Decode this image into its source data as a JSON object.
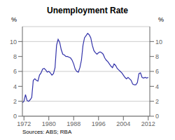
{
  "chart_data": {
    "type": "line",
    "title": "Unemployment Rate",
    "ylabel": "%",
    "y2label": "%",
    "annotations": [
      "Sources: ABS; RBA"
    ],
    "color": "#3333aa",
    "xlim": [
      1971.5,
      2012.5
    ],
    "xticks": [
      1972,
      1980,
      1988,
      1996,
      2004,
      2012
    ],
    "ylim": [
      0,
      12
    ],
    "yticks": [
      0,
      2,
      4,
      6,
      8,
      10
    ],
    "y2lim": [
      0,
      12
    ],
    "y2ticks": [
      0,
      2,
      4,
      6,
      8,
      10
    ],
    "grid": "y",
    "x": [
      1971.5,
      1972.0,
      1972.5,
      1973.0,
      1973.5,
      1974.0,
      1974.5,
      1975.0,
      1975.5,
      1976.0,
      1976.5,
      1977.0,
      1977.5,
      1978.0,
      1978.5,
      1979.0,
      1979.5,
      1980.0,
      1980.5,
      1981.0,
      1981.5,
      1982.0,
      1982.5,
      1983.0,
      1983.5,
      1984.0,
      1984.5,
      1985.0,
      1985.5,
      1986.0,
      1986.5,
      1987.0,
      1987.5,
      1988.0,
      1988.5,
      1989.0,
      1989.5,
      1990.0,
      1990.5,
      1991.0,
      1991.5,
      1992.0,
      1992.5,
      1993.0,
      1993.5,
      1994.0,
      1994.5,
      1995.0,
      1995.5,
      1996.0,
      1996.5,
      1997.0,
      1997.5,
      1998.0,
      1998.5,
      1999.0,
      1999.5,
      2000.0,
      2000.5,
      2001.0,
      2001.5,
      2002.0,
      2002.5,
      2003.0,
      2003.5,
      2004.0,
      2004.5,
      2005.0,
      2005.5,
      2006.0,
      2006.5,
      2007.0,
      2007.5,
      2008.0,
      2008.5,
      2009.0,
      2009.5,
      2010.0,
      2010.5,
      2011.0,
      2011.5,
      2012.0
    ],
    "values": [
      1.8,
      2.0,
      2.9,
      2.1,
      2.0,
      2.2,
      2.5,
      4.8,
      5.0,
      4.8,
      4.7,
      5.5,
      5.8,
      6.3,
      6.4,
      6.2,
      5.9,
      6.0,
      5.8,
      5.5,
      5.7,
      6.5,
      9.5,
      10.3,
      9.9,
      8.9,
      8.3,
      8.2,
      8.0,
      8.0,
      7.9,
      7.8,
      7.5,
      7.0,
      6.3,
      6.0,
      5.9,
      6.5,
      7.5,
      9.5,
      10.5,
      10.8,
      11.1,
      10.9,
      10.5,
      9.5,
      8.8,
      8.5,
      8.3,
      8.5,
      8.6,
      8.5,
      8.3,
      7.8,
      7.5,
      7.3,
      7.0,
      6.7,
      6.5,
      7.0,
      6.8,
      6.4,
      6.2,
      6.0,
      5.8,
      5.5,
      5.2,
      5.0,
      5.2,
      5.0,
      4.8,
      4.3,
      4.2,
      4.2,
      4.5,
      5.7,
      5.8,
      5.2,
      5.1,
      5.2,
      5.1,
      5.2
    ]
  }
}
